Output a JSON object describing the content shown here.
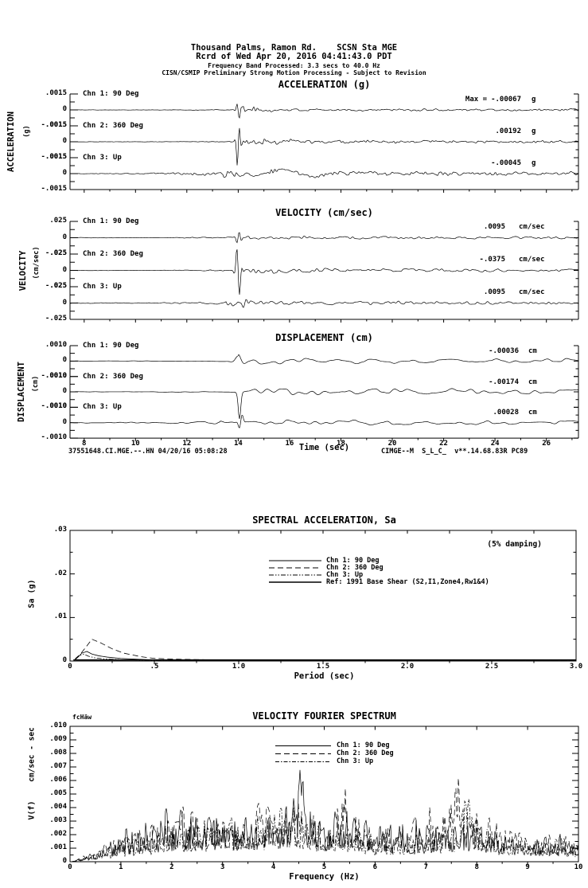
{
  "header": {
    "line1": "Thousand Palms, Ramon Rd.    SCSN Sta MGE",
    "line2": "Rcrd of Wed Apr 20, 2016 04:41:43.0 PDT",
    "line3": "Frequency Band Processed: 3.3 secs to 40.0 Hz",
    "line4": "CISN/CSMIP Preliminary Strong Motion Processing - Subject to Revision"
  },
  "footer": {
    "record_id": "37551648.CI.MGE.--.HN 04/20/16 05:08:28",
    "station_code": "CIMGE--M  S_L_C_  v**.14.68.83R PC89"
  },
  "chart_data": [
    {
      "id": "acceleration",
      "type": "line",
      "title": "ACCELERATION (g)",
      "side_label": "ACCELERATION",
      "side_units": "(g)",
      "unit": "g",
      "y_tick_labels": [
        ".0015",
        "0",
        "-.0015"
      ],
      "ylim": [
        -0.0015,
        0.0015
      ],
      "x_sec_range": [
        7.45,
        27.25
      ],
      "channels": [
        {
          "label": "Chn 1: 90 Deg",
          "max_prefix": "Max =",
          "max_label": "-.00067",
          "max_value": -0.00067,
          "signal": {
            "pre": 2e-05,
            "pre2": 5e-05,
            "g0": 10.5,
            "onset": 13.9,
            "burst": 0.0004,
            "tau": 1.1,
            "coda": 0.00013,
            "spike": -0.00086,
            "spike_t": 14.0,
            "spike_w": 0.09,
            "shape": "osc",
            "wl1": 2.2,
            "wl2": 5,
            "seed": 101
          }
        },
        {
          "label": "Chn 2: 360 Deg",
          "max_label": ".00192",
          "max_value": 0.00192,
          "signal": {
            "pre": 2e-05,
            "pre2": 5e-05,
            "g0": 11,
            "onset": 13.95,
            "burst": 0.0005,
            "tau": 1.4,
            "coda": 0.00015,
            "spike": 0.0024,
            "spike_t": 14.0,
            "spike_w": 0.09,
            "shape": "osc",
            "wl1": 2.2,
            "wl2": 5,
            "seed": 202
          }
        },
        {
          "label": "Chn 3: Up",
          "max_label": "-.00045",
          "max_value": -0.00045,
          "signal": {
            "pre": 3e-05,
            "pre2": 0.00022,
            "g0": 9.5,
            "onset": 13.4,
            "burst": 0.0002,
            "tau": 3.5,
            "coda": 0.0002,
            "spike": -0.0004,
            "spike_t": 16.3,
            "spike_w": 1.1,
            "shape": "osc",
            "wl1": 2.2,
            "wl2": 5,
            "seed": 303
          }
        }
      ]
    },
    {
      "id": "velocity",
      "type": "line",
      "title": "VELOCITY (cm/sec)",
      "side_label": "VELOCITY",
      "side_units": "(cm/sec)",
      "unit": "cm/sec",
      "y_tick_labels": [
        ".025",
        "0",
        "-.025"
      ],
      "ylim": [
        -0.025,
        0.025
      ],
      "x_sec_range": [
        7.45,
        27.25
      ],
      "channels": [
        {
          "label": "Chn 1: 90 Deg",
          "max_label": ".0095",
          "max_value": 0.0095,
          "signal": {
            "pre": 0.0005,
            "pre2": 0.0012,
            "g0": 11,
            "onset": 13.9,
            "burst": 0.0035,
            "tau": 2.0,
            "coda": 0.0022,
            "spike": 0.0122,
            "spike_t": 14.0,
            "spike_w": 0.1,
            "shape": "osc",
            "wl1": 3.2,
            "wl2": 7,
            "seed": 111
          }
        },
        {
          "label": "Chn 2: 360 Deg",
          "max_label": "-.0375",
          "max_value": -0.0375,
          "signal": {
            "pre": 0.0005,
            "pre2": 0.0012,
            "g0": 11,
            "onset": 13.95,
            "burst": 0.005,
            "tau": 2.2,
            "coda": 0.0026,
            "spike": -0.048,
            "spike_t": 14.0,
            "spike_w": 0.11,
            "shape": "osc",
            "wl1": 3.2,
            "wl2": 7,
            "seed": 222
          }
        },
        {
          "label": "Chn 3: Up",
          "max_label": ".0095",
          "max_value": 0.0095,
          "signal": {
            "pre": 0.0008,
            "pre2": 0.0022,
            "g0": 10,
            "onset": 13.5,
            "burst": 0.0028,
            "tau": 4.5,
            "coda": 0.0026,
            "spike": 0.01,
            "spike_t": 14.25,
            "spike_w": 0.12,
            "shape": "osc",
            "wl1": 3.2,
            "wl2": 7,
            "seed": 333
          }
        }
      ]
    },
    {
      "id": "displacement",
      "type": "line",
      "title": "DISPLACEMENT (cm)",
      "side_label": "DISPLACEMENT",
      "side_units": "(cm)",
      "unit": "cm",
      "y_tick_labels": [
        ".0010",
        "0",
        "-.0010"
      ],
      "ylim": [
        -0.001,
        0.001
      ],
      "x_sec_range": [
        7.45,
        27.25
      ],
      "xlabel": "Time (sec)",
      "x_tick_labels": [
        "8",
        "10",
        "12",
        "14",
        "16",
        "18",
        "20",
        "22",
        "24",
        "26"
      ],
      "x_tick_values": [
        8,
        10,
        12,
        14,
        16,
        18,
        20,
        22,
        24,
        26
      ],
      "channels": [
        {
          "label": "Chn 1: 90 Deg",
          "max_label": "-.00036",
          "max_value": -0.00036,
          "signal": {
            "pre": 2e-05,
            "pre2": 5e-05,
            "g0": 11,
            "onset": 14.0,
            "burst": 0.00012,
            "tau": 6,
            "coda": 0.00016,
            "spike": -0.0004,
            "spike_t": 14.1,
            "spike_w": 0.25,
            "shape": "osc",
            "wl1": 8,
            "wl2": 20,
            "seed": 404
          }
        },
        {
          "label": "Chn 2: 360 Deg",
          "max_label": "-.00174",
          "max_value": -0.00174,
          "signal": {
            "pre": 2e-05,
            "pre2": 5e-05,
            "g0": 11,
            "onset": 14.0,
            "burst": 0.00015,
            "tau": 7,
            "coda": 0.00018,
            "spike": -0.00174,
            "spike_t": 14.05,
            "spike_w": 0.07,
            "shape": "pulse",
            "wl1": 8,
            "wl2": 20,
            "seed": 505
          }
        },
        {
          "label": "Chn 3: Up",
          "max_label": ".00028",
          "max_value": 0.00028,
          "signal": {
            "pre": 3e-05,
            "pre2": 0.00012,
            "g0": 9,
            "onset": 13.3,
            "burst": 0.0001,
            "tau": 8,
            "coda": 0.00014,
            "spike": 0.0005,
            "spike_t": 14.1,
            "spike_w": 0.12,
            "shape": "osc",
            "wl1": 7,
            "wl2": 18,
            "seed": 606
          }
        }
      ]
    },
    {
      "id": "spectral_acceleration",
      "type": "line",
      "title": "SPECTRAL ACCELERATION, Sa",
      "damping_label": "(5% damping)",
      "ylabel": "Sa (g)",
      "xlabel": "Period (sec)",
      "xlim": [
        0,
        3
      ],
      "ylim": [
        0,
        0.03
      ],
      "y_tick_labels": [
        ".03",
        ".02",
        ".01",
        "0"
      ],
      "y_tick_values": [
        0.03,
        0.02,
        0.01,
        0
      ],
      "x_tick_labels": [
        "0",
        ".5",
        "1.0",
        "1.5",
        "2.0",
        "2.5",
        "3.0"
      ],
      "x_tick_values": [
        0,
        0.5,
        1.0,
        1.5,
        2.0,
        2.5,
        3.0
      ],
      "legend_position": "top-center",
      "series": [
        {
          "name": "Chn 1: 90 Deg",
          "style": "solid",
          "width": 0.8,
          "points": [
            [
              0.03,
              0.0003
            ],
            [
              0.05,
              0.001
            ],
            [
              0.07,
              0.0018
            ],
            [
              0.1,
              0.0022
            ],
            [
              0.13,
              0.0016
            ],
            [
              0.17,
              0.0012
            ],
            [
              0.22,
              0.0009
            ],
            [
              0.3,
              0.0006
            ],
            [
              0.4,
              0.0004
            ],
            [
              0.5,
              0.00025
            ],
            [
              0.7,
              0.00015
            ],
            [
              1.0,
              0.0001
            ],
            [
              2.0,
              6e-05
            ],
            [
              3.0,
              5e-05
            ]
          ]
        },
        {
          "name": "Chn 2: 360 Deg",
          "style": "dash",
          "width": 0.8,
          "points": [
            [
              0.03,
              0.0004
            ],
            [
              0.06,
              0.0015
            ],
            [
              0.09,
              0.003
            ],
            [
              0.13,
              0.005
            ],
            [
              0.18,
              0.0042
            ],
            [
              0.25,
              0.0028
            ],
            [
              0.32,
              0.0018
            ],
            [
              0.42,
              0.001
            ],
            [
              0.5,
              0.0006
            ],
            [
              0.65,
              0.0004
            ],
            [
              0.8,
              0.0003
            ],
            [
              1.0,
              0.0002
            ],
            [
              1.5,
              0.00012
            ],
            [
              2.0,
              0.0001
            ],
            [
              3.0,
              8e-05
            ]
          ]
        },
        {
          "name": "Chn 3: Up",
          "style": "dashdotdot",
          "width": 0.8,
          "points": [
            [
              0.03,
              0.0005
            ],
            [
              0.05,
              0.0012
            ],
            [
              0.08,
              0.0016
            ],
            [
              0.11,
              0.0011
            ],
            [
              0.15,
              0.0007
            ],
            [
              0.2,
              0.0005
            ],
            [
              0.3,
              0.0003
            ],
            [
              0.5,
              0.00015
            ],
            [
              1.0,
              8e-05
            ],
            [
              3.0,
              4e-05
            ]
          ]
        },
        {
          "name": "Ref: 1991 Base Shear (S2,I1,Zone4,Rw1&4)",
          "style": "solid",
          "width": 1.4,
          "points": [
            [
              0.02,
              0.00025
            ],
            [
              3.0,
              0.00025
            ]
          ]
        }
      ]
    },
    {
      "id": "velocity_fourier_spectrum",
      "type": "line",
      "title": "VELOCITY FOURIER SPECTRUM",
      "marker_text": "fcHäw",
      "ylabel": "V(f)",
      "ylabel_units": "cm/sec - sec",
      "xlabel": "Frequency (Hz)",
      "xlim": [
        0,
        10
      ],
      "ylim": [
        0,
        0.01
      ],
      "y_tick_labels": [
        ".010",
        ".009",
        ".008",
        ".007",
        ".006",
        ".005",
        ".004",
        ".003",
        ".002",
        ".001",
        "0"
      ],
      "y_tick_values": [
        0.01,
        0.009,
        0.008,
        0.007,
        0.006,
        0.005,
        0.004,
        0.003,
        0.002,
        0.001,
        0
      ],
      "x_tick_labels": [
        "0",
        "1",
        "2",
        "3",
        "4",
        "5",
        "6",
        "7",
        "8",
        "9",
        "10"
      ],
      "x_tick_values": [
        0,
        1,
        2,
        3,
        4,
        5,
        6,
        7,
        8,
        9,
        10
      ],
      "x": [
        0,
        0.5,
        1,
        1.5,
        2,
        2.5,
        3,
        3.5,
        4,
        4.5,
        5,
        5.5,
        6,
        6.5,
        7,
        7.5,
        8,
        8.5,
        9,
        9.5,
        10
      ],
      "series": [
        {
          "name": "Chn 1: 90 Deg",
          "style": "solid",
          "width": 0.7,
          "seed": 7001,
          "values": [
            0,
            0.0007,
            0.0018,
            0.0022,
            0.0028,
            0.0026,
            0.003,
            0.0028,
            0.003,
            0.0038,
            0.003,
            0.003,
            0.0022,
            0.002,
            0.0022,
            0.0024,
            0.0024,
            0.0018,
            0.0014,
            0.0016,
            0.0013
          ],
          "peaks": [
            {
              "f": 4.55,
              "a": 0.005,
              "w": 0.05
            }
          ]
        },
        {
          "name": "Chn 2: 360 Deg",
          "style": "dash",
          "width": 0.7,
          "seed": 7002,
          "values": [
            0,
            0.0006,
            0.0016,
            0.0024,
            0.003,
            0.0028,
            0.0032,
            0.003,
            0.0032,
            0.0034,
            0.0028,
            0.0034,
            0.002,
            0.0022,
            0.0026,
            0.0042,
            0.003,
            0.002,
            0.0016,
            0.0018,
            0.0014
          ],
          "peaks": [
            {
              "f": 5.4,
              "a": 0.003,
              "w": 0.08
            },
            {
              "f": 7.6,
              "a": 0.0032,
              "w": 0.15
            }
          ]
        },
        {
          "name": "Chn 3: Up",
          "style": "dashdot",
          "width": 0.7,
          "seed": 7003,
          "values": [
            0,
            0.0005,
            0.0012,
            0.0018,
            0.0022,
            0.0024,
            0.0026,
            0.0032,
            0.0028,
            0.003,
            0.0026,
            0.0022,
            0.0018,
            0.0016,
            0.0018,
            0.0022,
            0.0028,
            0.0016,
            0.0013,
            0.0015,
            0.0011
          ],
          "peaks": [
            {
              "f": 7.8,
              "a": 0.0025,
              "w": 0.12
            }
          ]
        }
      ]
    }
  ]
}
